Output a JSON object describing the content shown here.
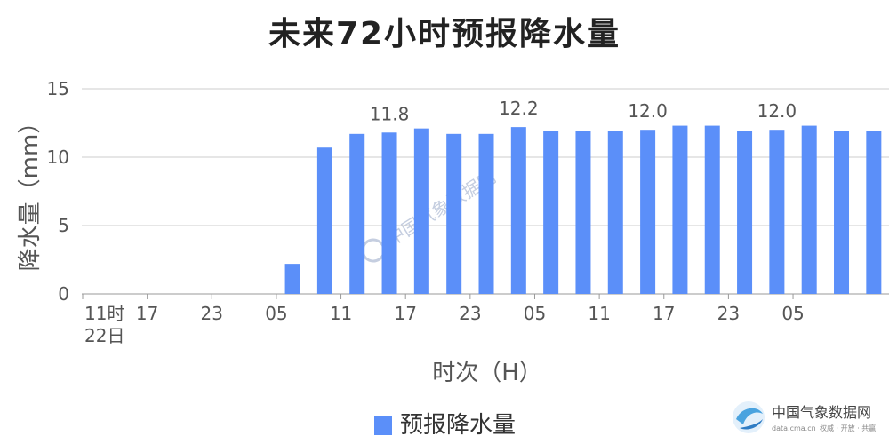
{
  "chart_data": {
    "type": "bar",
    "title": "未来72小时预报降水量",
    "ylabel": "降水量（mm）",
    "xlabel": "时次（H）",
    "ylim": [
      0,
      15
    ],
    "yticks": [
      0,
      5,
      10,
      15
    ],
    "grid": true,
    "legend": {
      "position": "bottom-center"
    },
    "x_tick_labels": [
      {
        "index": 0,
        "label": "11时",
        "sublabel": "22日"
      },
      {
        "index": 2,
        "label": "17"
      },
      {
        "index": 4,
        "label": "23"
      },
      {
        "index": 6,
        "label": "05"
      },
      {
        "index": 8,
        "label": "11"
      },
      {
        "index": 10,
        "label": "17"
      },
      {
        "index": 12,
        "label": "23"
      },
      {
        "index": 14,
        "label": "05"
      },
      {
        "index": 16,
        "label": "11"
      },
      {
        "index": 18,
        "label": "17"
      },
      {
        "index": 20,
        "label": "23"
      },
      {
        "index": 22,
        "label": "05"
      }
    ],
    "series": [
      {
        "name": "预报降水量",
        "color": "#5b8ff9",
        "values": [
          0,
          0,
          0,
          0,
          0,
          0,
          2.2,
          10.7,
          11.7,
          11.8,
          12.1,
          11.7,
          11.7,
          12.2,
          11.9,
          11.9,
          11.9,
          12.0,
          12.3,
          12.3,
          11.9,
          12.0,
          12.3,
          11.9,
          11.9
        ],
        "data_labels": [
          {
            "index": 9,
            "label": "11.8"
          },
          {
            "index": 13,
            "label": "12.2"
          },
          {
            "index": 17,
            "label": "12.0"
          },
          {
            "index": 21,
            "label": "12.0"
          }
        ]
      }
    ]
  },
  "watermark": {
    "text": "中国气象数据网",
    "icon": "cma-logo-icon"
  },
  "logo": {
    "name": "中国气象数据网",
    "url": "data.cma.cn",
    "tagline": "权威 · 开放 · 共赢",
    "icon": "cma-logo-icon"
  },
  "colors": {
    "bar": "#5b8ff9",
    "grid": "#cccccc",
    "axis": "#999999"
  }
}
